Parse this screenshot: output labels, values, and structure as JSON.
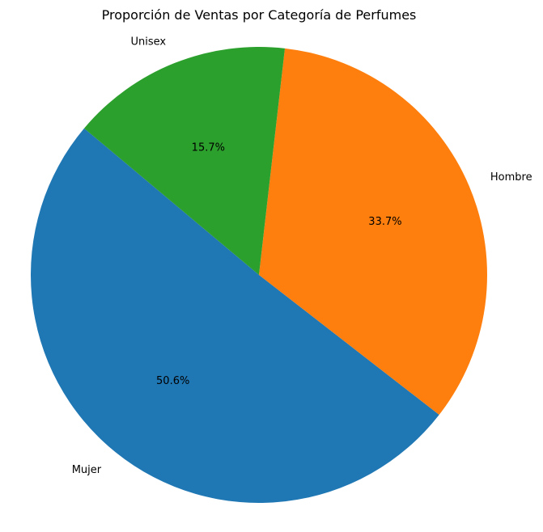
{
  "chart_data": {
    "type": "pie",
    "title": "Proporción de Ventas por Categoría de Perfumes",
    "categories": [
      "Mujer",
      "Hombre",
      "Unisex"
    ],
    "values": [
      50.6,
      33.7,
      15.7
    ],
    "value_labels": [
      "50.6%",
      "33.7%",
      "15.7%"
    ],
    "colors": [
      "#1f77b4",
      "#ff7f0e",
      "#2ca02c"
    ],
    "start_angle_deg": 140,
    "direction": "counterclockwise"
  }
}
